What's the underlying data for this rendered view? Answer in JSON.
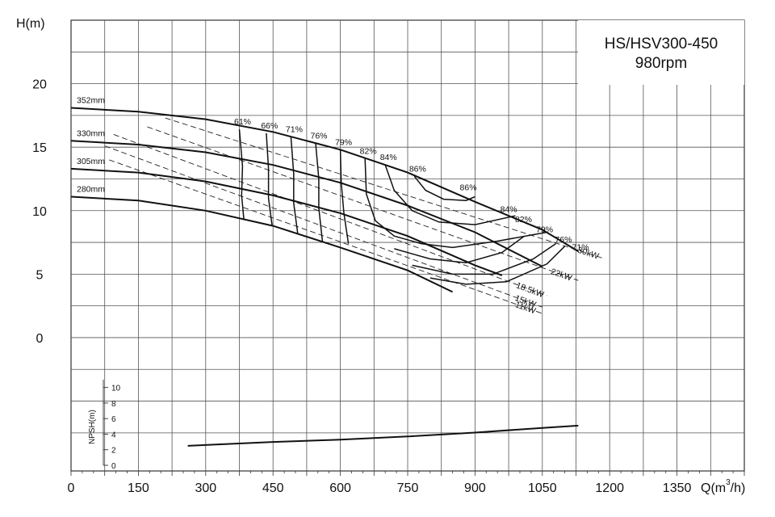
{
  "chart_data": {
    "type": "line",
    "title": "HS/HSV300-450",
    "subtitle": "980rpm",
    "xlabel": "Q(m³/h)",
    "xlabel_main": "Q(m",
    "xlabel_sup": "3",
    "xlabel_end": "/h)",
    "ylabel": "H(m)",
    "nps_label": "NPSH(m)",
    "xlim": [
      0,
      1500
    ],
    "ylim": [
      -10.5,
      25
    ],
    "grid": true,
    "x_ticks": [
      "0",
      "150",
      "300",
      "450",
      "600",
      "750",
      "900",
      "1050",
      "1200",
      "1350"
    ],
    "x_tick_values": [
      0,
      150,
      300,
      450,
      600,
      750,
      900,
      1050,
      1200,
      1350
    ],
    "y_ticks": [
      "0",
      "5",
      "10",
      "15",
      "20"
    ],
    "y_tick_values": [
      0,
      5,
      10,
      15,
      20
    ],
    "npsh_ticks": [
      "0",
      "2",
      "4",
      "6",
      "8",
      "10"
    ],
    "npsh_tick_values": [
      0,
      2,
      4,
      6,
      8,
      10
    ],
    "npsh_ylim": [
      0,
      11
    ],
    "impellers": [
      {
        "label": "352mm",
        "points": [
          [
            0,
            18.1
          ],
          [
            150,
            17.8
          ],
          [
            300,
            17.2
          ],
          [
            450,
            16.2
          ],
          [
            600,
            14.8
          ],
          [
            750,
            13.0
          ],
          [
            900,
            10.7
          ],
          [
            1050,
            8.5
          ],
          [
            1130,
            6.8
          ]
        ]
      },
      {
        "label": "330mm",
        "points": [
          [
            0,
            15.5
          ],
          [
            150,
            15.2
          ],
          [
            300,
            14.6
          ],
          [
            450,
            13.6
          ],
          [
            600,
            12.2
          ],
          [
            750,
            10.4
          ],
          [
            900,
            8.3
          ],
          [
            1050,
            5.6
          ]
        ]
      },
      {
        "label": "305mm",
        "points": [
          [
            0,
            13.3
          ],
          [
            150,
            13.0
          ],
          [
            300,
            12.3
          ],
          [
            450,
            11.2
          ],
          [
            600,
            9.8
          ],
          [
            750,
            8.0
          ],
          [
            900,
            5.7
          ],
          [
            960,
            4.9
          ]
        ]
      },
      {
        "label": "280mm",
        "points": [
          [
            0,
            11.1
          ],
          [
            150,
            10.8
          ],
          [
            300,
            10.0
          ],
          [
            450,
            8.8
          ],
          [
            600,
            7.1
          ],
          [
            750,
            5.3
          ],
          [
            850,
            3.6
          ]
        ]
      }
    ],
    "efficiency_lines": [
      {
        "label": "61%",
        "points": [
          [
            375,
            16.4
          ],
          [
            382,
            13.5
          ],
          [
            380,
            11.2
          ],
          [
            385,
            9.3
          ]
        ]
      },
      {
        "label": "66%",
        "points": [
          [
            435,
            16.1
          ],
          [
            440,
            13.3
          ],
          [
            440,
            11.0
          ],
          [
            448,
            8.8
          ]
        ]
      },
      {
        "label": "71%",
        "points": [
          [
            490,
            15.8
          ],
          [
            496,
            12.9
          ],
          [
            496,
            10.6
          ],
          [
            505,
            8.2
          ]
        ]
      },
      {
        "label": "76%",
        "points": [
          [
            545,
            15.3
          ],
          [
            552,
            12.5
          ],
          [
            552,
            10.2
          ],
          [
            560,
            7.6
          ]
        ]
      },
      {
        "label": "79%",
        "points": [
          [
            600,
            14.8
          ],
          [
            602,
            12.2
          ],
          [
            608,
            9.8
          ],
          [
            618,
            7.4
          ]
        ]
      },
      {
        "label": "82%",
        "points": [
          [
            655,
            14.1
          ],
          [
            658,
            11.3
          ],
          [
            678,
            9.2
          ],
          [
            720,
            8.0
          ],
          [
            780,
            7.4
          ],
          [
            850,
            7.1
          ],
          [
            950,
            7.6
          ],
          [
            1060,
            8.3
          ]
        ]
      },
      {
        "label": "84%",
        "points": [
          [
            700,
            13.6
          ],
          [
            720,
            11.6
          ],
          [
            760,
            10.0
          ],
          [
            820,
            9.1
          ],
          [
            900,
            8.9
          ],
          [
            990,
            9.6
          ]
        ]
      },
      {
        "label": "86%",
        "points": [
          [
            765,
            12.7
          ],
          [
            790,
            11.6
          ],
          [
            830,
            10.9
          ],
          [
            880,
            10.8
          ],
          [
            900,
            11.1
          ]
        ]
      }
    ],
    "efficiency_low_branches": [
      {
        "label": "84%",
        "points": [
          [
            720,
            7.0
          ],
          [
            800,
            6.2
          ],
          [
            880,
            5.9
          ],
          [
            960,
            6.7
          ],
          [
            1010,
            8.0
          ]
        ]
      },
      {
        "label": "79%",
        "points": [
          [
            760,
            5.7
          ],
          [
            850,
            5.0
          ],
          [
            940,
            5.0
          ],
          [
            1030,
            6.2
          ],
          [
            1080,
            7.4
          ]
        ]
      },
      {
        "label": "76%",
        "points": [
          [
            800,
            4.7
          ],
          [
            880,
            4.2
          ],
          [
            970,
            4.4
          ],
          [
            1060,
            5.8
          ],
          [
            1100,
            7.2
          ]
        ]
      }
    ],
    "right_efficiency_labels": [
      "86%",
      "84%",
      "82%",
      "79%",
      "76%",
      "71%"
    ],
    "power_lines": [
      {
        "label": "30kW",
        "points": [
          [
            210,
            17.3
          ],
          [
            1190,
            6.2
          ]
        ]
      },
      {
        "label": "22kW",
        "points": [
          [
            170,
            16.6
          ],
          [
            1130,
            4.5
          ]
        ]
      },
      {
        "label": "18.5kW",
        "points": [
          [
            95,
            16.0
          ],
          [
            1060,
            3.3
          ]
        ]
      },
      {
        "label": "15kW",
        "points": [
          [
            75,
            15.1
          ],
          [
            1050,
            2.4
          ]
        ]
      },
      {
        "label": "11kW",
        "points": [
          [
            85,
            14.0
          ],
          [
            1050,
            1.9
          ]
        ]
      }
    ],
    "npsh_curve": {
      "points": [
        [
          260,
          2.5
        ],
        [
          450,
          3.0
        ],
        [
          600,
          3.3
        ],
        [
          750,
          3.7
        ],
        [
          900,
          4.2
        ],
        [
          1050,
          4.8
        ],
        [
          1130,
          5.1
        ]
      ]
    }
  }
}
